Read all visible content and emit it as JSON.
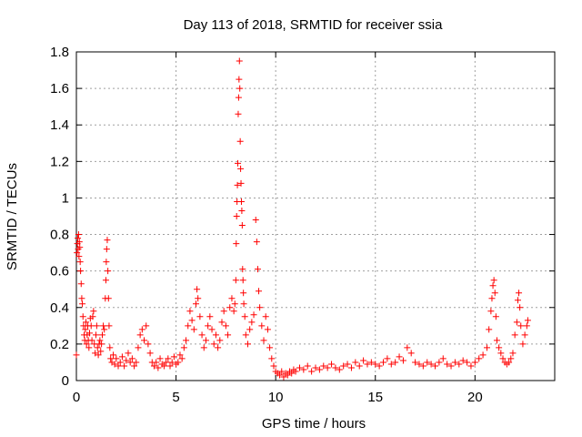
{
  "chart_data": {
    "type": "scatter",
    "title": "Day 113 of 2018, SRMTID for receiver ssia",
    "xlabel": "GPS time / hours",
    "ylabel": "SRMTID / TECUs",
    "xlim": [
      0,
      24
    ],
    "ylim": [
      0,
      1.8
    ],
    "xticks": [
      0,
      5,
      10,
      15,
      20
    ],
    "yticks": [
      0,
      0.2,
      0.4,
      0.6,
      0.8,
      1,
      1.2,
      1.4,
      1.6,
      1.8
    ],
    "ytick_labels": [
      "0",
      "0.2",
      "0.4",
      "0.6",
      "0.8",
      "1",
      "1.2",
      "1.4",
      "1.6",
      "1.8"
    ],
    "grid": true,
    "marker": "+",
    "color": "#ff0000",
    "series": [
      {
        "name": "SRMTID",
        "points": [
          [
            0.0,
            0.14
          ],
          [
            0.03,
            0.7
          ],
          [
            0.05,
            0.75
          ],
          [
            0.07,
            0.78
          ],
          [
            0.09,
            0.72
          ],
          [
            0.11,
            0.8
          ],
          [
            0.13,
            0.68
          ],
          [
            0.15,
            0.76
          ],
          [
            0.17,
            0.73
          ],
          [
            0.19,
            0.65
          ],
          [
            0.21,
            0.6
          ],
          [
            0.24,
            0.53
          ],
          [
            0.27,
            0.45
          ],
          [
            0.3,
            0.42
          ],
          [
            0.33,
            0.35
          ],
          [
            0.36,
            0.3
          ],
          [
            0.39,
            0.25
          ],
          [
            0.42,
            0.22
          ],
          [
            0.45,
            0.28
          ],
          [
            0.48,
            0.32
          ],
          [
            0.51,
            0.2
          ],
          [
            0.54,
            0.25
          ],
          [
            0.57,
            0.3
          ],
          [
            0.6,
            0.22
          ],
          [
            0.63,
            0.18
          ],
          [
            0.66,
            0.26
          ],
          [
            0.7,
            0.34
          ],
          [
            0.74,
            0.3
          ],
          [
            0.78,
            0.22
          ],
          [
            0.82,
            0.35
          ],
          [
            0.86,
            0.38
          ],
          [
            0.9,
            0.2
          ],
          [
            0.94,
            0.15
          ],
          [
            0.98,
            0.25
          ],
          [
            1.02,
            0.3
          ],
          [
            1.06,
            0.18
          ],
          [
            1.1,
            0.14
          ],
          [
            1.14,
            0.2
          ],
          [
            1.18,
            0.22
          ],
          [
            1.22,
            0.16
          ],
          [
            1.26,
            0.2
          ],
          [
            1.3,
            0.25
          ],
          [
            1.35,
            0.3
          ],
          [
            1.4,
            0.28
          ],
          [
            1.45,
            0.45
          ],
          [
            1.48,
            0.55
          ],
          [
            1.5,
            0.65
          ],
          [
            1.52,
            0.72
          ],
          [
            1.55,
            0.77
          ],
          [
            1.58,
            0.6
          ],
          [
            1.61,
            0.45
          ],
          [
            1.64,
            0.3
          ],
          [
            1.68,
            0.18
          ],
          [
            1.72,
            0.12
          ],
          [
            1.78,
            0.1
          ],
          [
            1.85,
            0.14
          ],
          [
            1.92,
            0.09
          ],
          [
            2.0,
            0.12
          ],
          [
            2.1,
            0.08
          ],
          [
            2.2,
            0.1
          ],
          [
            2.3,
            0.13
          ],
          [
            2.4,
            0.08
          ],
          [
            2.5,
            0.11
          ],
          [
            2.6,
            0.15
          ],
          [
            2.7,
            0.1
          ],
          [
            2.8,
            0.12
          ],
          [
            2.9,
            0.08
          ],
          [
            3.0,
            0.1
          ],
          [
            3.1,
            0.18
          ],
          [
            3.2,
            0.25
          ],
          [
            3.3,
            0.28
          ],
          [
            3.4,
            0.22
          ],
          [
            3.5,
            0.3
          ],
          [
            3.6,
            0.2
          ],
          [
            3.7,
            0.15
          ],
          [
            3.8,
            0.1
          ],
          [
            3.9,
            0.08
          ],
          [
            4.0,
            0.1
          ],
          [
            4.1,
            0.07
          ],
          [
            4.2,
            0.12
          ],
          [
            4.3,
            0.09
          ],
          [
            4.4,
            0.08
          ],
          [
            4.5,
            0.1
          ],
          [
            4.6,
            0.12
          ],
          [
            4.7,
            0.08
          ],
          [
            4.8,
            0.1
          ],
          [
            4.9,
            0.13
          ],
          [
            5.0,
            0.09
          ],
          [
            5.1,
            0.1
          ],
          [
            5.2,
            0.14
          ],
          [
            5.3,
            0.12
          ],
          [
            5.4,
            0.18
          ],
          [
            5.5,
            0.22
          ],
          [
            5.6,
            0.3
          ],
          [
            5.7,
            0.38
          ],
          [
            5.8,
            0.33
          ],
          [
            5.9,
            0.28
          ],
          [
            6.0,
            0.42
          ],
          [
            6.05,
            0.5
          ],
          [
            6.1,
            0.45
          ],
          [
            6.2,
            0.35
          ],
          [
            6.3,
            0.25
          ],
          [
            6.4,
            0.18
          ],
          [
            6.5,
            0.22
          ],
          [
            6.6,
            0.3
          ],
          [
            6.7,
            0.35
          ],
          [
            6.8,
            0.28
          ],
          [
            6.9,
            0.2
          ],
          [
            7.0,
            0.25
          ],
          [
            7.1,
            0.18
          ],
          [
            7.2,
            0.22
          ],
          [
            7.3,
            0.32
          ],
          [
            7.4,
            0.38
          ],
          [
            7.5,
            0.3
          ],
          [
            7.6,
            0.25
          ],
          [
            7.7,
            0.4
          ],
          [
            7.8,
            0.45
          ],
          [
            7.9,
            0.38
          ],
          [
            7.95,
            0.42
          ],
          [
            8.0,
            0.55
          ],
          [
            8.02,
            0.75
          ],
          [
            8.04,
            0.9
          ],
          [
            8.06,
            0.98
          ],
          [
            8.08,
            1.07
          ],
          [
            8.1,
            1.19
          ],
          [
            8.12,
            1.46
          ],
          [
            8.14,
            1.55
          ],
          [
            8.16,
            1.65
          ],
          [
            8.18,
            1.75
          ],
          [
            8.2,
            1.6
          ],
          [
            8.22,
            1.31
          ],
          [
            8.24,
            1.16
          ],
          [
            8.26,
            1.08
          ],
          [
            8.28,
            0.98
          ],
          [
            8.3,
            0.93
          ],
          [
            8.32,
            0.85
          ],
          [
            8.34,
            0.61
          ],
          [
            8.36,
            0.55
          ],
          [
            8.38,
            0.48
          ],
          [
            8.4,
            0.42
          ],
          [
            8.45,
            0.35
          ],
          [
            8.5,
            0.25
          ],
          [
            8.6,
            0.2
          ],
          [
            8.7,
            0.28
          ],
          [
            8.8,
            0.32
          ],
          [
            8.9,
            0.36
          ],
          [
            9.0,
            0.88
          ],
          [
            9.05,
            0.76
          ],
          [
            9.1,
            0.61
          ],
          [
            9.15,
            0.49
          ],
          [
            9.2,
            0.4
          ],
          [
            9.3,
            0.3
          ],
          [
            9.4,
            0.22
          ],
          [
            9.5,
            0.35
          ],
          [
            9.6,
            0.28
          ],
          [
            9.7,
            0.18
          ],
          [
            9.8,
            0.12
          ],
          [
            9.9,
            0.08
          ],
          [
            10.0,
            0.05
          ],
          [
            10.1,
            0.04
          ],
          [
            10.2,
            0.03
          ],
          [
            10.3,
            0.05
          ],
          [
            10.4,
            0.02
          ],
          [
            10.5,
            0.04
          ],
          [
            10.6,
            0.03
          ],
          [
            10.7,
            0.05
          ],
          [
            10.8,
            0.04
          ],
          [
            10.9,
            0.06
          ],
          [
            11.0,
            0.05
          ],
          [
            11.2,
            0.07
          ],
          [
            11.4,
            0.06
          ],
          [
            11.6,
            0.08
          ],
          [
            11.8,
            0.05
          ],
          [
            12.0,
            0.07
          ],
          [
            12.2,
            0.06
          ],
          [
            12.4,
            0.08
          ],
          [
            12.6,
            0.07
          ],
          [
            12.8,
            0.09
          ],
          [
            13.0,
            0.07
          ],
          [
            13.2,
            0.06
          ],
          [
            13.4,
            0.08
          ],
          [
            13.6,
            0.09
          ],
          [
            13.8,
            0.07
          ],
          [
            14.0,
            0.1
          ],
          [
            14.2,
            0.08
          ],
          [
            14.4,
            0.11
          ],
          [
            14.6,
            0.09
          ],
          [
            14.8,
            0.1
          ],
          [
            15.0,
            0.09
          ],
          [
            15.2,
            0.08
          ],
          [
            15.4,
            0.1
          ],
          [
            15.6,
            0.12
          ],
          [
            15.8,
            0.09
          ],
          [
            16.0,
            0.1
          ],
          [
            16.2,
            0.13
          ],
          [
            16.4,
            0.11
          ],
          [
            16.6,
            0.18
          ],
          [
            16.8,
            0.15
          ],
          [
            17.0,
            0.1
          ],
          [
            17.2,
            0.09
          ],
          [
            17.4,
            0.08
          ],
          [
            17.6,
            0.1
          ],
          [
            17.8,
            0.09
          ],
          [
            18.0,
            0.08
          ],
          [
            18.2,
            0.1
          ],
          [
            18.4,
            0.12
          ],
          [
            18.6,
            0.09
          ],
          [
            18.8,
            0.08
          ],
          [
            19.0,
            0.1
          ],
          [
            19.2,
            0.09
          ],
          [
            19.4,
            0.11
          ],
          [
            19.6,
            0.1
          ],
          [
            19.8,
            0.08
          ],
          [
            20.0,
            0.1
          ],
          [
            20.2,
            0.12
          ],
          [
            20.4,
            0.14
          ],
          [
            20.6,
            0.18
          ],
          [
            20.7,
            0.28
          ],
          [
            20.8,
            0.38
          ],
          [
            20.85,
            0.45
          ],
          [
            20.9,
            0.52
          ],
          [
            20.95,
            0.55
          ],
          [
            21.0,
            0.48
          ],
          [
            21.05,
            0.35
          ],
          [
            21.1,
            0.22
          ],
          [
            21.2,
            0.18
          ],
          [
            21.3,
            0.15
          ],
          [
            21.4,
            0.12
          ],
          [
            21.5,
            0.1
          ],
          [
            21.6,
            0.09
          ],
          [
            21.7,
            0.1
          ],
          [
            21.8,
            0.12
          ],
          [
            21.9,
            0.15
          ],
          [
            22.0,
            0.25
          ],
          [
            22.1,
            0.32
          ],
          [
            22.15,
            0.44
          ],
          [
            22.2,
            0.48
          ],
          [
            22.25,
            0.4
          ],
          [
            22.3,
            0.3
          ],
          [
            22.4,
            0.2
          ],
          [
            22.5,
            0.25
          ],
          [
            22.6,
            0.3
          ],
          [
            22.65,
            0.33
          ]
        ]
      }
    ]
  }
}
